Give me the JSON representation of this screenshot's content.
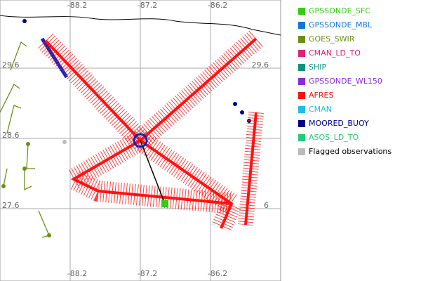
{
  "map": {
    "grid_labels": {
      "top": [
        "-88.2",
        "-87.2",
        "-86.2"
      ],
      "bottom": [
        "-88.2",
        "-87.2",
        "-86.2"
      ],
      "left": [
        "29.6",
        "28.6",
        "27.6"
      ],
      "right": [
        "29.6",
        "6"
      ]
    },
    "legend": {
      "items": [
        {
          "label": "GPSSONDE_SFC",
          "color": "#33cc11"
        },
        {
          "label": "GPSSONDE_MBL",
          "color": "#1177dd"
        },
        {
          "label": "GOES_SWIR",
          "color": "#6b8e1a"
        },
        {
          "label": "CMAN_LD_TO",
          "color": "#e0207a"
        },
        {
          "label": "SHIP",
          "color": "#119080"
        },
        {
          "label": "GPSSONDE_WL150",
          "color": "#8a2be2"
        },
        {
          "label": "AFRES",
          "color": "#ff1111"
        },
        {
          "label": "CMAN",
          "color": "#22bbee"
        },
        {
          "label": "MOORED_BUOY",
          "color": "#000088"
        },
        {
          "label": "ASOS_LD_TO",
          "color": "#22cc77"
        },
        {
          "label": "Flagged observations",
          "color": "#bbbbbb"
        }
      ]
    }
  }
}
